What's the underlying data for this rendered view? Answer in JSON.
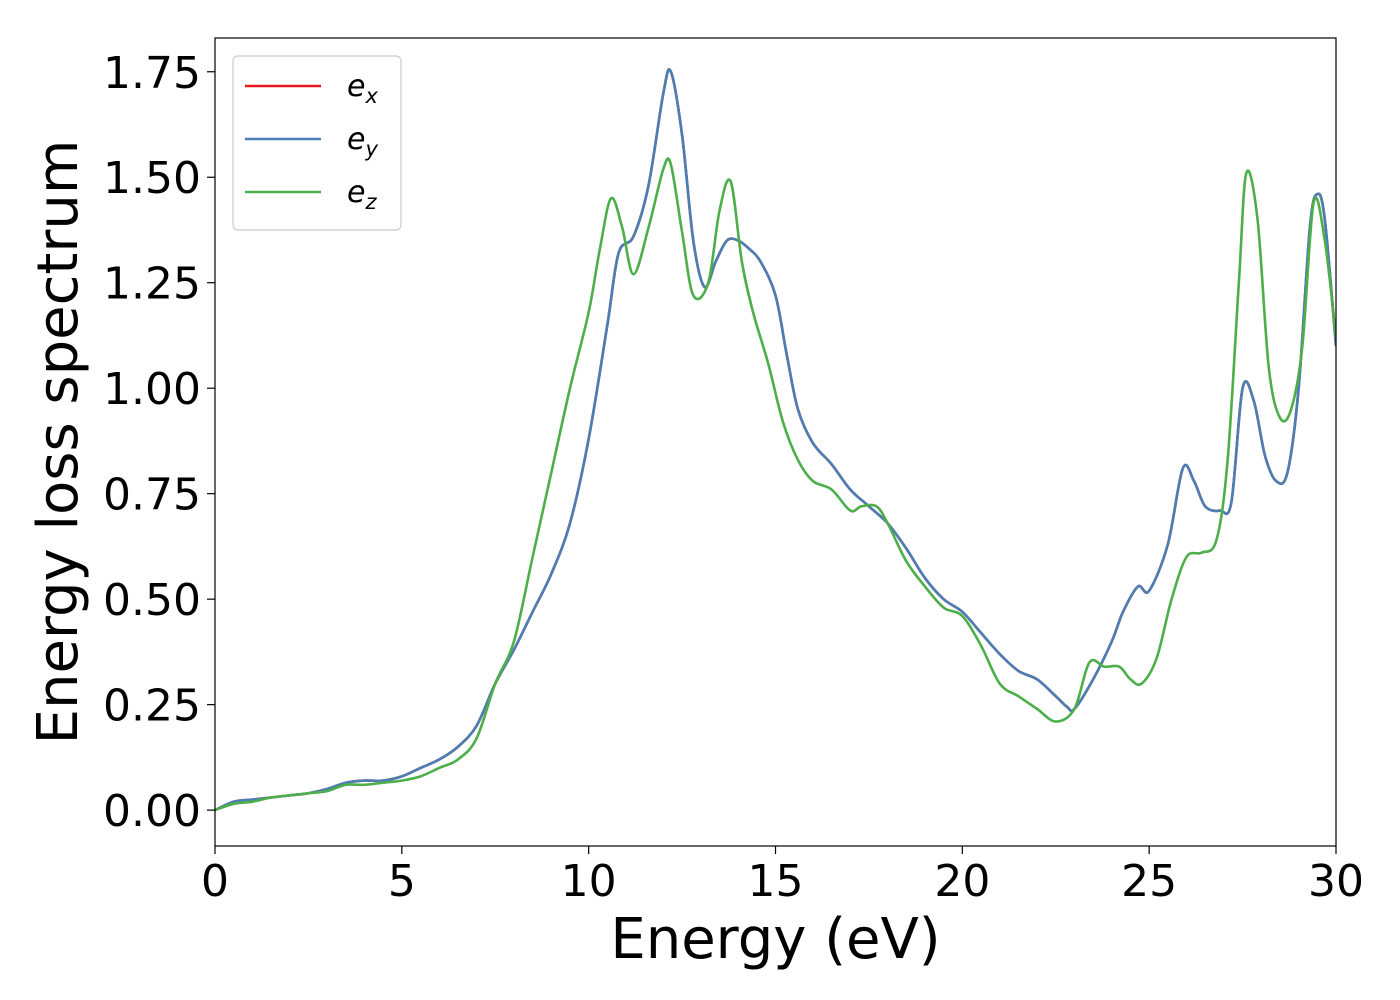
{
  "chart_data": {
    "type": "line",
    "title": "",
    "xlabel": "Energy (eV)",
    "ylabel": "Energy loss spectrum",
    "xlim": [
      0,
      30
    ],
    "ylim": [
      -0.085,
      1.83
    ],
    "xticks": [
      0,
      5,
      10,
      15,
      20,
      25,
      30
    ],
    "xtick_labels": [
      "0",
      "5",
      "10",
      "15",
      "20",
      "25",
      "30"
    ],
    "yticks": [
      0,
      0.25,
      0.5,
      0.75,
      1.0,
      1.25,
      1.5,
      1.75
    ],
    "ytick_labels": [
      "0.00",
      "0.25",
      "0.50",
      "0.75",
      "1.00",
      "1.25",
      "1.50",
      "1.75"
    ],
    "grid": false,
    "legend_position": "top-left",
    "series": [
      {
        "name": "e_x",
        "label_base": "e",
        "label_sub": "x",
        "color": "#e41a1c",
        "x": [
          0,
          0.5,
          1,
          1.5,
          2,
          2.5,
          3,
          3.5,
          4,
          4.5,
          5,
          5.5,
          6,
          6.5,
          7,
          7.5,
          8,
          8.5,
          9,
          9.5,
          10,
          10.5,
          10.8,
          11.2,
          11.6,
          12,
          12.2,
          12.5,
          12.8,
          13.1,
          13.4,
          13.7,
          14,
          14.3,
          14.6,
          15,
          15.3,
          15.6,
          16,
          16.5,
          17,
          17.5,
          18,
          18.5,
          19,
          19.5,
          20,
          20.5,
          21,
          21.5,
          22,
          22.5,
          22.8,
          23,
          23.5,
          24,
          24.3,
          24.7,
          25,
          25.5,
          25.9,
          26.2,
          26.5,
          26.9,
          27.2,
          27.5,
          27.8,
          28.1,
          28.4,
          28.7,
          29,
          29.3,
          29.5,
          29.7,
          30
        ],
        "y": [
          0,
          0.02,
          0.025,
          0.03,
          0.035,
          0.04,
          0.05,
          0.065,
          0.07,
          0.07,
          0.08,
          0.1,
          0.12,
          0.15,
          0.2,
          0.3,
          0.38,
          0.47,
          0.56,
          0.68,
          0.88,
          1.15,
          1.32,
          1.36,
          1.48,
          1.7,
          1.75,
          1.6,
          1.35,
          1.24,
          1.3,
          1.35,
          1.35,
          1.33,
          1.3,
          1.22,
          1.08,
          0.95,
          0.87,
          0.82,
          0.76,
          0.72,
          0.68,
          0.62,
          0.55,
          0.5,
          0.47,
          0.42,
          0.37,
          0.33,
          0.31,
          0.27,
          0.245,
          0.24,
          0.31,
          0.4,
          0.47,
          0.53,
          0.52,
          0.63,
          0.81,
          0.78,
          0.72,
          0.71,
          0.73,
          1.0,
          0.97,
          0.84,
          0.78,
          0.8,
          1.0,
          1.38,
          1.46,
          1.4,
          1.1
        ]
      },
      {
        "name": "e_y",
        "label_base": "e",
        "label_sub": "y",
        "color": "#4a7fb5",
        "x": [
          0,
          0.5,
          1,
          1.5,
          2,
          2.5,
          3,
          3.5,
          4,
          4.5,
          5,
          5.5,
          6,
          6.5,
          7,
          7.5,
          8,
          8.5,
          9,
          9.5,
          10,
          10.5,
          10.8,
          11.2,
          11.6,
          12,
          12.2,
          12.5,
          12.8,
          13.1,
          13.4,
          13.7,
          14,
          14.3,
          14.6,
          15,
          15.3,
          15.6,
          16,
          16.5,
          17,
          17.5,
          18,
          18.5,
          19,
          19.5,
          20,
          20.5,
          21,
          21.5,
          22,
          22.5,
          22.8,
          23,
          23.5,
          24,
          24.3,
          24.7,
          25,
          25.5,
          25.9,
          26.2,
          26.5,
          26.9,
          27.2,
          27.5,
          27.8,
          28.1,
          28.4,
          28.7,
          29,
          29.3,
          29.5,
          29.7,
          30
        ],
        "y": [
          0,
          0.02,
          0.025,
          0.03,
          0.035,
          0.04,
          0.05,
          0.065,
          0.07,
          0.07,
          0.08,
          0.1,
          0.12,
          0.15,
          0.2,
          0.3,
          0.38,
          0.47,
          0.56,
          0.68,
          0.88,
          1.15,
          1.32,
          1.36,
          1.48,
          1.7,
          1.75,
          1.6,
          1.35,
          1.24,
          1.3,
          1.35,
          1.35,
          1.33,
          1.3,
          1.22,
          1.08,
          0.95,
          0.87,
          0.82,
          0.76,
          0.72,
          0.68,
          0.62,
          0.55,
          0.5,
          0.47,
          0.42,
          0.37,
          0.33,
          0.31,
          0.27,
          0.245,
          0.24,
          0.31,
          0.4,
          0.47,
          0.53,
          0.52,
          0.63,
          0.81,
          0.78,
          0.72,
          0.71,
          0.73,
          1.0,
          0.97,
          0.84,
          0.78,
          0.8,
          1.0,
          1.38,
          1.46,
          1.4,
          1.1
        ]
      },
      {
        "name": "e_z",
        "label_base": "e",
        "label_sub": "z",
        "color": "#4daf4a",
        "x": [
          0,
          0.5,
          1,
          1.5,
          2,
          2.5,
          3,
          3.5,
          4,
          4.5,
          5,
          5.5,
          6,
          6.5,
          7,
          7.5,
          8,
          8.5,
          9,
          9.5,
          10,
          10.3,
          10.6,
          10.9,
          11.2,
          11.6,
          12,
          12.2,
          12.5,
          12.8,
          13.2,
          13.5,
          13.8,
          14.1,
          14.4,
          14.8,
          15.2,
          15.6,
          16,
          16.5,
          17,
          17.3,
          17.7,
          18,
          18.5,
          19,
          19.5,
          20,
          20.5,
          21,
          21.5,
          22,
          22.5,
          23,
          23.4,
          23.8,
          24.2,
          24.5,
          24.8,
          25.2,
          25.6,
          26,
          26.4,
          26.8,
          27.1,
          27.4,
          27.6,
          27.9,
          28.2,
          28.5,
          28.8,
          29.1,
          29.4,
          29.7,
          30
        ],
        "y": [
          0,
          0.015,
          0.02,
          0.03,
          0.035,
          0.04,
          0.045,
          0.06,
          0.06,
          0.065,
          0.07,
          0.08,
          0.1,
          0.12,
          0.17,
          0.3,
          0.4,
          0.6,
          0.8,
          1.0,
          1.18,
          1.33,
          1.45,
          1.38,
          1.27,
          1.38,
          1.52,
          1.53,
          1.37,
          1.22,
          1.25,
          1.42,
          1.49,
          1.3,
          1.18,
          1.06,
          0.92,
          0.83,
          0.78,
          0.76,
          0.71,
          0.72,
          0.72,
          0.68,
          0.59,
          0.53,
          0.48,
          0.46,
          0.39,
          0.3,
          0.27,
          0.24,
          0.21,
          0.24,
          0.35,
          0.34,
          0.34,
          0.31,
          0.3,
          0.36,
          0.5,
          0.6,
          0.61,
          0.64,
          0.83,
          1.25,
          1.51,
          1.4,
          1.05,
          0.93,
          0.95,
          1.1,
          1.44,
          1.35,
          1.12
        ]
      }
    ]
  }
}
